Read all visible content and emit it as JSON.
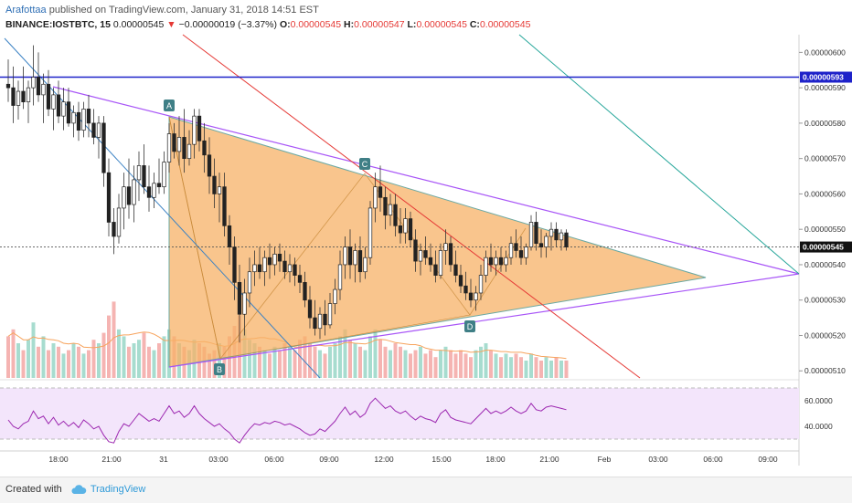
{
  "header": {
    "author": "Arafottaa",
    "published": "published on TradingView.com, January 31, 2018 14:51 EST",
    "symbol": "BINANCE:IOSTBTC, 15",
    "last": "0.00000545",
    "change_arrow": "▼",
    "change": "−0.00000019 (−3.37%)",
    "o_label": "O:",
    "o": "0.00000545",
    "h_label": "H:",
    "h": "0.00000547",
    "l_label": "L:",
    "l": "0.00000545",
    "c_label": "C:",
    "c": "0.00000545"
  },
  "footer": {
    "created": "Created with",
    "brand": "TradingView",
    "logo_icon": "tradingview-cloud-icon"
  },
  "colors": {
    "up": "#26a69a",
    "down": "#ef5350",
    "triangle_fill": "#f7b267",
    "price_line": "#1e22c9",
    "purple": "#a855f7",
    "red_line": "#e53935",
    "green_line": "#26a69a",
    "blue_line": "#3b82c4",
    "rsi_bg": "#f3e5fb",
    "rsi_line": "#9c27b0"
  },
  "chart_data": {
    "type": "candlestick",
    "symbol": "IOSTBTC",
    "interval": "15",
    "y_axis": {
      "min": 5.1e-06,
      "max": 6e-06,
      "ticks": [
        "0.00000510",
        "0.00000520",
        "0.00000530",
        "0.00000540",
        "0.00000550",
        "0.00000560",
        "0.00000570",
        "0.00000580",
        "0.00000590",
        "0.00000600"
      ],
      "position": "right"
    },
    "x_axis": {
      "ticks": [
        "18:00",
        "21:00",
        "31",
        "03:00",
        "06:00",
        "09:00",
        "12:00",
        "15:00",
        "18:00",
        "21:00",
        "Feb",
        "03:00",
        "06:00",
        "09:00"
      ]
    },
    "price_labels": [
      {
        "value": 5.93e-06,
        "text": "0.00000593",
        "style": "line"
      },
      {
        "value": 5.45e-06,
        "text": "0.00000545",
        "style": "last"
      }
    ],
    "candles": [
      {
        "t": 0,
        "o": 5.91e-06,
        "h": 5.98e-06,
        "l": 5.86e-06,
        "c": 5.9e-06
      },
      {
        "t": 1,
        "o": 5.9e-06,
        "h": 5.96e-06,
        "l": 5.8e-06,
        "c": 5.85e-06
      },
      {
        "t": 2,
        "o": 5.85e-06,
        "h": 5.92e-06,
        "l": 5.81e-06,
        "c": 5.89e-06
      },
      {
        "t": 3,
        "o": 5.89e-06,
        "h": 5.96e-06,
        "l": 5.84e-06,
        "c": 5.86e-06
      },
      {
        "t": 4,
        "o": 5.86e-06,
        "h": 5.92e-06,
        "l": 5.8e-06,
        "c": 5.9e-06
      },
      {
        "t": 5,
        "o": 5.9e-06,
        "h": 6.02e-06,
        "l": 5.85e-06,
        "c": 5.93e-06
      },
      {
        "t": 6,
        "o": 5.93e-06,
        "h": 6e-06,
        "l": 5.86e-06,
        "c": 5.88e-06
      },
      {
        "t": 7,
        "o": 5.88e-06,
        "h": 5.94e-06,
        "l": 5.8e-06,
        "c": 5.91e-06
      },
      {
        "t": 8,
        "o": 5.91e-06,
        "h": 5.95e-06,
        "l": 5.82e-06,
        "c": 5.84e-06
      },
      {
        "t": 9,
        "o": 5.84e-06,
        "h": 5.9e-06,
        "l": 5.78e-06,
        "c": 5.88e-06
      },
      {
        "t": 10,
        "o": 5.88e-06,
        "h": 5.92e-06,
        "l": 5.8e-06,
        "c": 5.82e-06
      },
      {
        "t": 11,
        "o": 5.82e-06,
        "h": 5.9e-06,
        "l": 5.78e-06,
        "c": 5.86e-06
      },
      {
        "t": 12,
        "o": 5.86e-06,
        "h": 5.9e-06,
        "l": 5.79e-06,
        "c": 5.8e-06
      },
      {
        "t": 13,
        "o": 5.8e-06,
        "h": 5.85e-06,
        "l": 5.76e-06,
        "c": 5.83e-06
      },
      {
        "t": 14,
        "o": 5.83e-06,
        "h": 5.86e-06,
        "l": 5.75e-06,
        "c": 5.78e-06
      },
      {
        "t": 15,
        "o": 5.78e-06,
        "h": 5.86e-06,
        "l": 5.76e-06,
        "c": 5.84e-06
      },
      {
        "t": 16,
        "o": 5.84e-06,
        "h": 5.88e-06,
        "l": 5.76e-06,
        "c": 5.8e-06
      },
      {
        "t": 17,
        "o": 5.8e-06,
        "h": 5.84e-06,
        "l": 5.74e-06,
        "c": 5.76e-06
      },
      {
        "t": 18,
        "o": 5.76e-06,
        "h": 5.82e-06,
        "l": 5.7e-06,
        "c": 5.8e-06
      },
      {
        "t": 19,
        "o": 5.8e-06,
        "h": 5.82e-06,
        "l": 5.62e-06,
        "c": 5.66e-06
      },
      {
        "t": 20,
        "o": 5.66e-06,
        "h": 5.7e-06,
        "l": 5.48e-06,
        "c": 5.52e-06
      },
      {
        "t": 21,
        "o": 5.52e-06,
        "h": 5.56e-06,
        "l": 5.43e-06,
        "c": 5.48e-06
      },
      {
        "t": 22,
        "o": 5.48e-06,
        "h": 5.6e-06,
        "l": 5.46e-06,
        "c": 5.56e-06
      },
      {
        "t": 23,
        "o": 5.56e-06,
        "h": 5.66e-06,
        "l": 5.5e-06,
        "c": 5.62e-06
      },
      {
        "t": 24,
        "o": 5.62e-06,
        "h": 5.7e-06,
        "l": 5.53e-06,
        "c": 5.57e-06
      },
      {
        "t": 25,
        "o": 5.57e-06,
        "h": 5.68e-06,
        "l": 5.52e-06,
        "c": 5.64e-06
      },
      {
        "t": 26,
        "o": 5.64e-06,
        "h": 5.72e-06,
        "l": 5.58e-06,
        "c": 5.68e-06
      },
      {
        "t": 27,
        "o": 5.68e-06,
        "h": 5.74e-06,
        "l": 5.6e-06,
        "c": 5.62e-06
      },
      {
        "t": 28,
        "o": 5.62e-06,
        "h": 5.68e-06,
        "l": 5.55e-06,
        "c": 5.59e-06
      },
      {
        "t": 29,
        "o": 5.59e-06,
        "h": 5.66e-06,
        "l": 5.56e-06,
        "c": 5.63e-06
      },
      {
        "t": 30,
        "o": 5.63e-06,
        "h": 5.7e-06,
        "l": 5.6e-06,
        "c": 5.62e-06
      },
      {
        "t": 31,
        "o": 5.62e-06,
        "h": 5.72e-06,
        "l": 5.6e-06,
        "c": 5.69e-06
      },
      {
        "t": 32,
        "o": 5.69e-06,
        "h": 5.8e-06,
        "l": 5.66e-06,
        "c": 5.77e-06
      },
      {
        "t": 33,
        "o": 5.77e-06,
        "h": 5.8e-06,
        "l": 5.7e-06,
        "c": 5.72e-06
      },
      {
        "t": 34,
        "o": 5.72e-06,
        "h": 5.82e-06,
        "l": 5.68e-06,
        "c": 5.76e-06
      },
      {
        "t": 35,
        "o": 5.76e-06,
        "h": 5.84e-06,
        "l": 5.66e-06,
        "c": 5.7e-06
      },
      {
        "t": 36,
        "o": 5.7e-06,
        "h": 5.78e-06,
        "l": 5.68e-06,
        "c": 5.74e-06
      },
      {
        "t": 37,
        "o": 5.74e-06,
        "h": 5.84e-06,
        "l": 5.7e-06,
        "c": 5.82e-06
      },
      {
        "t": 38,
        "o": 5.82e-06,
        "h": 5.84e-06,
        "l": 5.72e-06,
        "c": 5.75e-06
      },
      {
        "t": 39,
        "o": 5.75e-06,
        "h": 5.8e-06,
        "l": 5.66e-06,
        "c": 5.71e-06
      },
      {
        "t": 40,
        "o": 5.71e-06,
        "h": 5.76e-06,
        "l": 5.6e-06,
        "c": 5.65e-06
      },
      {
        "t": 41,
        "o": 5.65e-06,
        "h": 5.7e-06,
        "l": 5.56e-06,
        "c": 5.6e-06
      },
      {
        "t": 42,
        "o": 5.6e-06,
        "h": 5.66e-06,
        "l": 5.52e-06,
        "c": 5.62e-06
      },
      {
        "t": 43,
        "o": 5.62e-06,
        "h": 5.66e-06,
        "l": 5.48e-06,
        "c": 5.51e-06
      },
      {
        "t": 44,
        "o": 5.51e-06,
        "h": 5.54e-06,
        "l": 5.4e-06,
        "c": 5.45e-06
      },
      {
        "t": 45,
        "o": 5.45e-06,
        "h": 5.48e-06,
        "l": 5.3e-06,
        "c": 5.35e-06
      },
      {
        "t": 46,
        "o": 5.35e-06,
        "h": 5.4e-06,
        "l": 5.18e-06,
        "c": 5.26e-06
      },
      {
        "t": 47,
        "o": 5.26e-06,
        "h": 5.36e-06,
        "l": 5.2e-06,
        "c": 5.32e-06
      },
      {
        "t": 48,
        "o": 5.32e-06,
        "h": 5.42e-06,
        "l": 5.28e-06,
        "c": 5.38e-06
      },
      {
        "t": 49,
        "o": 5.38e-06,
        "h": 5.44e-06,
        "l": 5.34e-06,
        "c": 5.4e-06
      },
      {
        "t": 50,
        "o": 5.4e-06,
        "h": 5.45e-06,
        "l": 5.36e-06,
        "c": 5.38e-06
      },
      {
        "t": 51,
        "o": 5.38e-06,
        "h": 5.44e-06,
        "l": 5.34e-06,
        "c": 5.42e-06
      },
      {
        "t": 52,
        "o": 5.42e-06,
        "h": 5.46e-06,
        "l": 5.36e-06,
        "c": 5.4e-06
      },
      {
        "t": 53,
        "o": 5.4e-06,
        "h": 5.45e-06,
        "l": 5.37e-06,
        "c": 5.43e-06
      },
      {
        "t": 54,
        "o": 5.43e-06,
        "h": 5.46e-06,
        "l": 5.38e-06,
        "c": 5.41e-06
      },
      {
        "t": 55,
        "o": 5.41e-06,
        "h": 5.44e-06,
        "l": 5.36e-06,
        "c": 5.38e-06
      },
      {
        "t": 56,
        "o": 5.38e-06,
        "h": 5.43e-06,
        "l": 5.35e-06,
        "c": 5.4e-06
      },
      {
        "t": 57,
        "o": 5.4e-06,
        "h": 5.42e-06,
        "l": 5.34e-06,
        "c": 5.37e-06
      },
      {
        "t": 58,
        "o": 5.37e-06,
        "h": 5.4e-06,
        "l": 5.32e-06,
        "c": 5.35e-06
      },
      {
        "t": 59,
        "o": 5.35e-06,
        "h": 5.38e-06,
        "l": 5.28e-06,
        "c": 5.3e-06
      },
      {
        "t": 60,
        "o": 5.3e-06,
        "h": 5.34e-06,
        "l": 5.22e-06,
        "c": 5.25e-06
      },
      {
        "t": 61,
        "o": 5.25e-06,
        "h": 5.3e-06,
        "l": 5.2e-06,
        "c": 5.22e-06
      },
      {
        "t": 62,
        "o": 5.22e-06,
        "h": 5.28e-06,
        "l": 5.19e-06,
        "c": 5.26e-06
      },
      {
        "t": 63,
        "o": 5.26e-06,
        "h": 5.3e-06,
        "l": 5.2e-06,
        "c": 5.23e-06
      },
      {
        "t": 64,
        "o": 5.23e-06,
        "h": 5.32e-06,
        "l": 5.22e-06,
        "c": 5.29e-06
      },
      {
        "t": 65,
        "o": 5.29e-06,
        "h": 5.36e-06,
        "l": 5.26e-06,
        "c": 5.33e-06
      },
      {
        "t": 66,
        "o": 5.33e-06,
        "h": 5.44e-06,
        "l": 5.3e-06,
        "c": 5.4e-06
      },
      {
        "t": 67,
        "o": 5.4e-06,
        "h": 5.48e-06,
        "l": 5.36e-06,
        "c": 5.45e-06
      },
      {
        "t": 68,
        "o": 5.45e-06,
        "h": 5.5e-06,
        "l": 5.36e-06,
        "c": 5.4e-06
      },
      {
        "t": 69,
        "o": 5.4e-06,
        "h": 5.46e-06,
        "l": 5.35e-06,
        "c": 5.44e-06
      },
      {
        "t": 70,
        "o": 5.44e-06,
        "h": 5.48e-06,
        "l": 5.35e-06,
        "c": 5.38e-06
      },
      {
        "t": 71,
        "o": 5.38e-06,
        "h": 5.45e-06,
        "l": 5.36e-06,
        "c": 5.42e-06
      },
      {
        "t": 72,
        "o": 5.42e-06,
        "h": 5.58e-06,
        "l": 5.4e-06,
        "c": 5.56e-06
      },
      {
        "t": 73,
        "o": 5.56e-06,
        "h": 5.66e-06,
        "l": 5.52e-06,
        "c": 5.62e-06
      },
      {
        "t": 74,
        "o": 5.62e-06,
        "h": 5.68e-06,
        "l": 5.55e-06,
        "c": 5.59e-06
      },
      {
        "t": 75,
        "o": 5.59e-06,
        "h": 5.62e-06,
        "l": 5.5e-06,
        "c": 5.54e-06
      },
      {
        "t": 76,
        "o": 5.54e-06,
        "h": 5.6e-06,
        "l": 5.51e-06,
        "c": 5.57e-06
      },
      {
        "t": 77,
        "o": 5.57e-06,
        "h": 5.6e-06,
        "l": 5.48e-06,
        "c": 5.51e-06
      },
      {
        "t": 78,
        "o": 5.51e-06,
        "h": 5.56e-06,
        "l": 5.46e-06,
        "c": 5.49e-06
      },
      {
        "t": 79,
        "o": 5.49e-06,
        "h": 5.56e-06,
        "l": 5.46e-06,
        "c": 5.53e-06
      },
      {
        "t": 80,
        "o": 5.53e-06,
        "h": 5.55e-06,
        "l": 5.45e-06,
        "c": 5.47e-06
      },
      {
        "t": 81,
        "o": 5.47e-06,
        "h": 5.5e-06,
        "l": 5.38e-06,
        "c": 5.41e-06
      },
      {
        "t": 82,
        "o": 5.41e-06,
        "h": 5.46e-06,
        "l": 5.37e-06,
        "c": 5.44e-06
      },
      {
        "t": 83,
        "o": 5.44e-06,
        "h": 5.48e-06,
        "l": 5.4e-06,
        "c": 5.42e-06
      },
      {
        "t": 84,
        "o": 5.42e-06,
        "h": 5.46e-06,
        "l": 5.38e-06,
        "c": 5.4e-06
      },
      {
        "t": 85,
        "o": 5.4e-06,
        "h": 5.44e-06,
        "l": 5.35e-06,
        "c": 5.37e-06
      },
      {
        "t": 86,
        "o": 5.37e-06,
        "h": 5.46e-06,
        "l": 5.36e-06,
        "c": 5.44e-06
      },
      {
        "t": 87,
        "o": 5.44e-06,
        "h": 5.5e-06,
        "l": 5.4e-06,
        "c": 5.46e-06
      },
      {
        "t": 88,
        "o": 5.46e-06,
        "h": 5.48e-06,
        "l": 5.38e-06,
        "c": 5.4e-06
      },
      {
        "t": 89,
        "o": 5.4e-06,
        "h": 5.44e-06,
        "l": 5.35e-06,
        "c": 5.37e-06
      },
      {
        "t": 90,
        "o": 5.37e-06,
        "h": 5.4e-06,
        "l": 5.32e-06,
        "c": 5.34e-06
      },
      {
        "t": 91,
        "o": 5.34e-06,
        "h": 5.38e-06,
        "l": 5.3e-06,
        "c": 5.32e-06
      },
      {
        "t": 92,
        "o": 5.32e-06,
        "h": 5.36e-06,
        "l": 5.28e-06,
        "c": 5.3e-06
      },
      {
        "t": 93,
        "o": 5.3e-06,
        "h": 5.34e-06,
        "l": 5.27e-06,
        "c": 5.32e-06
      },
      {
        "t": 94,
        "o": 5.32e-06,
        "h": 5.4e-06,
        "l": 5.3e-06,
        "c": 5.37e-06
      },
      {
        "t": 95,
        "o": 5.37e-06,
        "h": 5.44e-06,
        "l": 5.35e-06,
        "c": 5.42e-06
      },
      {
        "t": 96,
        "o": 5.42e-06,
        "h": 5.46e-06,
        "l": 5.38e-06,
        "c": 5.4e-06
      },
      {
        "t": 97,
        "o": 5.4e-06,
        "h": 5.44e-06,
        "l": 5.37e-06,
        "c": 5.42e-06
      },
      {
        "t": 98,
        "o": 5.42e-06,
        "h": 5.45e-06,
        "l": 5.38e-06,
        "c": 5.4e-06
      },
      {
        "t": 99,
        "o": 5.4e-06,
        "h": 5.44e-06,
        "l": 5.38e-06,
        "c": 5.42e-06
      },
      {
        "t": 100,
        "o": 5.42e-06,
        "h": 5.48e-06,
        "l": 5.4e-06,
        "c": 5.46e-06
      },
      {
        "t": 101,
        "o": 5.46e-06,
        "h": 5.5e-06,
        "l": 5.42e-06,
        "c": 5.44e-06
      },
      {
        "t": 102,
        "o": 5.44e-06,
        "h": 5.48e-06,
        "l": 5.4e-06,
        "c": 5.42e-06
      },
      {
        "t": 103,
        "o": 5.42e-06,
        "h": 5.46e-06,
        "l": 5.4e-06,
        "c": 5.45e-06
      },
      {
        "t": 104,
        "o": 5.45e-06,
        "h": 5.54e-06,
        "l": 5.44e-06,
        "c": 5.52e-06
      },
      {
        "t": 105,
        "o": 5.52e-06,
        "h": 5.55e-06,
        "l": 5.44e-06,
        "c": 5.46e-06
      },
      {
        "t": 106,
        "o": 5.46e-06,
        "h": 5.5e-06,
        "l": 5.42e-06,
        "c": 5.45e-06
      },
      {
        "t": 107,
        "o": 5.45e-06,
        "h": 5.49e-06,
        "l": 5.42e-06,
        "c": 5.48e-06
      },
      {
        "t": 108,
        "o": 5.48e-06,
        "h": 5.52e-06,
        "l": 5.44e-06,
        "c": 5.5e-06
      },
      {
        "t": 109,
        "o": 5.5e-06,
        "h": 5.52e-06,
        "l": 5.45e-06,
        "c": 5.47e-06
      },
      {
        "t": 110,
        "o": 5.47e-06,
        "h": 5.5e-06,
        "l": 5.44e-06,
        "c": 5.49e-06
      },
      {
        "t": 111,
        "o": 5.49e-06,
        "h": 5.5e-06,
        "l": 5.44e-06,
        "c": 5.45e-06
      }
    ],
    "volume": [
      12,
      14,
      10,
      8,
      11,
      16,
      9,
      12,
      8,
      10,
      9,
      7,
      8,
      10,
      9,
      7,
      8,
      11,
      10,
      13,
      18,
      22,
      14,
      12,
      9,
      10,
      11,
      13,
      9,
      8,
      10,
      12,
      14,
      12,
      10,
      9,
      8,
      11,
      10,
      9,
      7,
      8,
      10,
      9,
      12,
      15,
      18,
      14,
      11,
      10,
      9,
      8,
      7,
      9,
      8,
      10,
      9,
      8,
      11,
      12,
      10,
      9,
      8,
      7,
      9,
      10,
      12,
      14,
      11,
      10,
      9,
      8,
      12,
      14,
      11,
      9,
      8,
      10,
      9,
      8,
      7,
      8,
      9,
      7,
      8,
      6,
      8,
      9,
      8,
      7,
      8,
      7,
      6,
      8,
      9,
      10,
      8,
      7,
      6,
      7,
      6,
      7,
      6,
      5,
      7,
      6,
      5,
      6,
      5,
      6,
      5,
      5
    ],
    "volume_ma_label": "",
    "rsi": {
      "values": [
        45,
        40,
        38,
        42,
        44,
        52,
        46,
        48,
        42,
        47,
        41,
        44,
        40,
        43,
        39,
        45,
        42,
        38,
        40,
        33,
        28,
        27,
        36,
        42,
        40,
        45,
        50,
        47,
        44,
        46,
        44,
        50,
        56,
        50,
        52,
        47,
        50,
        56,
        50,
        46,
        43,
        40,
        42,
        38,
        35,
        30,
        27,
        33,
        38,
        42,
        41,
        43,
        42,
        44,
        43,
        41,
        42,
        40,
        38,
        35,
        33,
        34,
        38,
        36,
        40,
        44,
        50,
        55,
        49,
        52,
        47,
        50,
        58,
        62,
        58,
        54,
        56,
        52,
        50,
        52,
        48,
        45,
        48,
        46,
        45,
        43,
        50,
        53,
        47,
        45,
        44,
        43,
        42,
        46,
        50,
        54,
        50,
        52,
        50,
        52,
        55,
        52,
        50,
        52,
        58,
        53,
        52,
        55,
        56,
        55,
        54,
        53
      ],
      "ticks": [
        "40.0000",
        "60.0000"
      ],
      "upper": 70,
      "lower": 30
    },
    "drawings": [
      {
        "type": "triangle",
        "name": "ABCD pattern",
        "points": [
          "A",
          "B",
          "C",
          "D"
        ]
      },
      {
        "type": "horizontal",
        "value": 5.93e-06
      }
    ],
    "pattern_points": [
      {
        "label": "A",
        "t": 33,
        "price": 5.84e-06
      },
      {
        "label": "B",
        "t": 46,
        "price": 5.13e-06
      },
      {
        "label": "C",
        "t": 74,
        "price": 5.67e-06
      },
      {
        "label": "D",
        "t": 93,
        "price": 5.27e-06
      }
    ]
  }
}
